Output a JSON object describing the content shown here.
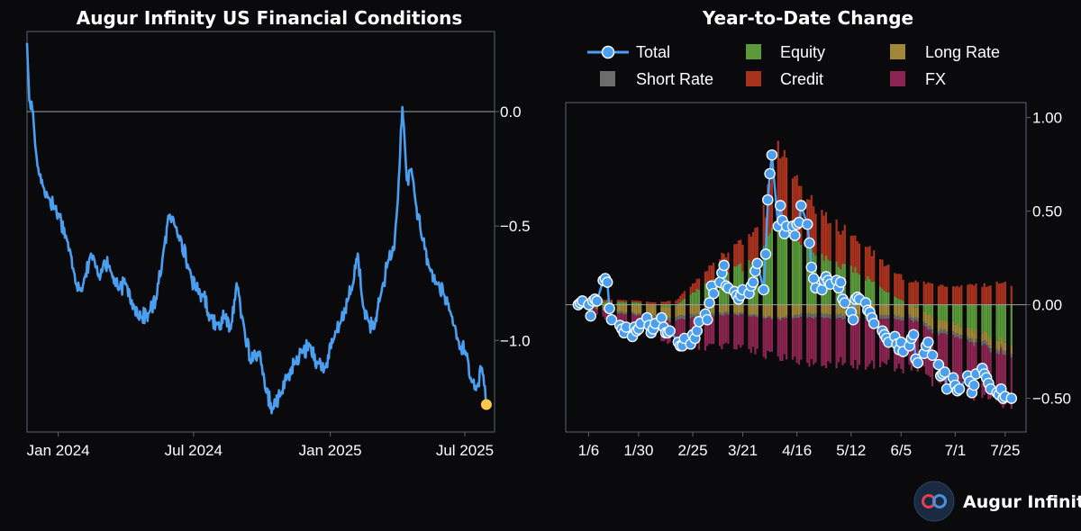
{
  "brand": {
    "name": "Augur Infinity"
  },
  "colors": {
    "background": "#0a0a0c",
    "frame": "#5a6470",
    "total": "#4a9ff0",
    "equity": "#5a9a3a",
    "credit": "#a8321e",
    "long_rate": "#a08838",
    "short_rate": "#6c6c6c",
    "fx": "#8a2450",
    "highlight": "#ffc84a"
  },
  "chart_data": [
    {
      "type": "line",
      "title": "Augur Infinity US Financial Conditions",
      "xlabel": "",
      "ylabel": "",
      "x_tick_labels": [
        "Jan 2024",
        "Jul 2024",
        "Jan 2025",
        "Jul 2025"
      ],
      "y_ticks": [
        0.0,
        -0.5,
        -1.0
      ],
      "y_tick_labels": [
        "0.0",
        "−0.5",
        "−1.0"
      ],
      "ylim": [
        -1.4,
        0.35
      ],
      "xlim": [
        "2023-11-20",
        "2025-08-10"
      ],
      "grid": false,
      "reference_line": 0.0,
      "anchors": [
        [
          "2023-11-20",
          0.3
        ],
        [
          "2023-11-23",
          0.05
        ],
        [
          "2023-11-28",
          0.0
        ],
        [
          "2023-12-01",
          -0.15
        ],
        [
          "2023-12-06",
          -0.27
        ],
        [
          "2023-12-12",
          -0.33
        ],
        [
          "2023-12-20",
          -0.38
        ],
        [
          "2024-01-02",
          -0.45
        ],
        [
          "2024-01-12",
          -0.55
        ],
        [
          "2024-01-22",
          -0.7
        ],
        [
          "2024-01-30",
          -0.78
        ],
        [
          "2024-02-06",
          -0.72
        ],
        [
          "2024-02-14",
          -0.62
        ],
        [
          "2024-02-24",
          -0.72
        ],
        [
          "2024-03-03",
          -0.65
        ],
        [
          "2024-03-12",
          -0.7
        ],
        [
          "2024-03-22",
          -0.78
        ],
        [
          "2024-04-01",
          -0.75
        ],
        [
          "2024-04-12",
          -0.85
        ],
        [
          "2024-04-22",
          -0.9
        ],
        [
          "2024-05-02",
          -0.88
        ],
        [
          "2024-05-12",
          -0.82
        ],
        [
          "2024-05-22",
          -0.6
        ],
        [
          "2024-05-30",
          -0.45
        ],
        [
          "2024-06-06",
          -0.5
        ],
        [
          "2024-06-14",
          -0.55
        ],
        [
          "2024-06-24",
          -0.68
        ],
        [
          "2024-07-04",
          -0.78
        ],
        [
          "2024-07-14",
          -0.8
        ],
        [
          "2024-07-24",
          -0.9
        ],
        [
          "2024-08-02",
          -0.93
        ],
        [
          "2024-08-12",
          -0.9
        ],
        [
          "2024-08-20",
          -0.95
        ],
        [
          "2024-08-28",
          -0.75
        ],
        [
          "2024-09-06",
          -0.92
        ],
        [
          "2024-09-16",
          -1.1
        ],
        [
          "2024-09-26",
          -1.05
        ],
        [
          "2024-10-06",
          -1.22
        ],
        [
          "2024-10-16",
          -1.3
        ],
        [
          "2024-10-26",
          -1.24
        ],
        [
          "2024-11-05",
          -1.15
        ],
        [
          "2024-11-15",
          -1.1
        ],
        [
          "2024-11-25",
          -1.05
        ],
        [
          "2024-12-05",
          -1.02
        ],
        [
          "2024-12-15",
          -1.1
        ],
        [
          "2024-12-25",
          -1.12
        ],
        [
          "2025-01-05",
          -1.0
        ],
        [
          "2025-01-15",
          -0.92
        ],
        [
          "2025-01-25",
          -0.82
        ],
        [
          "2025-02-01",
          -0.75
        ],
        [
          "2025-02-07",
          -0.62
        ],
        [
          "2025-02-14",
          -0.85
        ],
        [
          "2025-02-22",
          -0.92
        ],
        [
          "2025-03-01",
          -0.95
        ],
        [
          "2025-03-10",
          -0.8
        ],
        [
          "2025-03-20",
          -0.65
        ],
        [
          "2025-03-28",
          -0.6
        ],
        [
          "2025-04-04",
          -0.25
        ],
        [
          "2025-04-08",
          0.02
        ],
        [
          "2025-04-14",
          -0.3
        ],
        [
          "2025-04-20",
          -0.25
        ],
        [
          "2025-04-26",
          -0.4
        ],
        [
          "2025-05-04",
          -0.55
        ],
        [
          "2025-05-14",
          -0.68
        ],
        [
          "2025-05-24",
          -0.75
        ],
        [
          "2025-06-03",
          -0.8
        ],
        [
          "2025-06-12",
          -0.88
        ],
        [
          "2025-06-22",
          -1.0
        ],
        [
          "2025-07-02",
          -1.05
        ],
        [
          "2025-07-10",
          -1.18
        ],
        [
          "2025-07-18",
          -1.2
        ],
        [
          "2025-07-24",
          -1.12
        ],
        [
          "2025-07-30",
          -1.28
        ]
      ],
      "last_point": [
        "2025-07-30",
        -1.28
      ]
    },
    {
      "type": "bar",
      "title": "Year-to-Date Change",
      "xlabel": "",
      "ylabel": "",
      "x_tick_labels": [
        "1/6",
        "1/30",
        "2/25",
        "3/21",
        "4/16",
        "5/12",
        "6/5",
        "7/1",
        "7/25"
      ],
      "y_ticks": [
        1.0,
        0.5,
        0.0,
        -0.5
      ],
      "y_tick_labels": [
        "1.00",
        "0.50",
        "0.00",
        "−0.50"
      ],
      "ylim": [
        -0.68,
        1.08
      ],
      "xlim": [
        "2024-12-26",
        "2025-08-04"
      ],
      "grid": false,
      "legend_position": "top",
      "legend": [
        "Total",
        "Equity",
        "Long Rate",
        "Short Rate",
        "Credit",
        "FX"
      ],
      "series_order": [
        "equity",
        "credit",
        "long_rate",
        "short_rate",
        "fx"
      ],
      "anchors": {
        "dates": [
          "2025-01-02",
          "2025-01-15",
          "2025-02-01",
          "2025-02-15",
          "2025-03-01",
          "2025-03-15",
          "2025-03-25",
          "2025-04-01",
          "2025-04-07",
          "2025-04-12",
          "2025-04-20",
          "2025-04-30",
          "2025-05-15",
          "2025-06-01",
          "2025-06-20",
          "2025-07-05",
          "2025-07-20",
          "2025-07-28"
        ],
        "equity": [
          0.0,
          0.02,
          0.01,
          -0.02,
          0.1,
          0.18,
          0.22,
          0.3,
          0.48,
          0.38,
          0.3,
          0.24,
          0.18,
          0.05,
          -0.06,
          -0.12,
          -0.17,
          -0.2
        ],
        "credit": [
          0.01,
          0.01,
          0.01,
          0.02,
          0.06,
          0.12,
          0.16,
          0.22,
          0.38,
          0.34,
          0.27,
          0.22,
          0.17,
          0.13,
          0.11,
          0.1,
          0.11,
          0.11
        ],
        "long_rate": [
          0.0,
          -0.03,
          -0.05,
          -0.06,
          -0.05,
          -0.04,
          -0.05,
          -0.06,
          -0.07,
          -0.06,
          -0.05,
          -0.05,
          -0.06,
          -0.06,
          -0.06,
          -0.05,
          -0.05,
          -0.05
        ],
        "short_rate": [
          0.0,
          -0.01,
          -0.01,
          -0.02,
          -0.02,
          -0.01,
          -0.01,
          -0.01,
          -0.01,
          -0.01,
          -0.02,
          -0.02,
          -0.02,
          -0.02,
          -0.02,
          -0.02,
          -0.02,
          -0.02
        ],
        "fx": [
          0.0,
          -0.04,
          -0.08,
          -0.12,
          -0.16,
          -0.17,
          -0.18,
          -0.19,
          -0.2,
          -0.22,
          -0.24,
          -0.24,
          -0.24,
          -0.25,
          -0.25,
          -0.26,
          -0.27,
          -0.28
        ]
      },
      "total_points": [
        [
          "2025-01-01",
          0.0
        ],
        [
          "2025-01-02",
          0.01
        ],
        [
          "2025-01-03",
          0.02
        ],
        [
          "2025-01-06",
          0.0
        ],
        [
          "2025-01-07",
          -0.06
        ],
        [
          "2025-01-08",
          0.02
        ],
        [
          "2025-01-09",
          0.03
        ],
        [
          "2025-01-10",
          0.02
        ],
        [
          "2025-01-13",
          0.13
        ],
        [
          "2025-01-14",
          0.14
        ],
        [
          "2025-01-15",
          0.12
        ],
        [
          "2025-01-16",
          -0.02
        ],
        [
          "2025-01-17",
          -0.08
        ],
        [
          "2025-01-21",
          -0.11
        ],
        [
          "2025-01-22",
          -0.13
        ],
        [
          "2025-01-23",
          -0.15
        ],
        [
          "2025-01-24",
          -0.12
        ],
        [
          "2025-01-27",
          -0.17
        ],
        [
          "2025-01-28",
          -0.12
        ],
        [
          "2025-01-29",
          -0.14
        ],
        [
          "2025-01-30",
          -0.13
        ],
        [
          "2025-01-31",
          -0.1
        ],
        [
          "2025-02-03",
          -0.07
        ],
        [
          "2025-02-04",
          -0.11
        ],
        [
          "2025-02-05",
          -0.15
        ],
        [
          "2025-02-06",
          -0.13
        ],
        [
          "2025-02-07",
          -0.1
        ],
        [
          "2025-02-10",
          -0.07
        ],
        [
          "2025-02-11",
          -0.12
        ],
        [
          "2025-02-12",
          -0.15
        ],
        [
          "2025-02-13",
          -0.15
        ],
        [
          "2025-02-14",
          -0.14
        ],
        [
          "2025-02-18",
          -0.2
        ],
        [
          "2025-02-19",
          -0.22
        ],
        [
          "2025-02-20",
          -0.22
        ],
        [
          "2025-02-21",
          -0.18
        ],
        [
          "2025-02-24",
          -0.21
        ],
        [
          "2025-02-25",
          -0.16
        ],
        [
          "2025-02-26",
          -0.18
        ],
        [
          "2025-02-27",
          -0.14
        ],
        [
          "2025-02-28",
          -0.09
        ],
        [
          "2025-03-03",
          -0.05
        ],
        [
          "2025-03-04",
          -0.08
        ],
        [
          "2025-03-05",
          0.01
        ],
        [
          "2025-03-06",
          0.1
        ],
        [
          "2025-03-07",
          0.06
        ],
        [
          "2025-03-10",
          0.12
        ],
        [
          "2025-03-11",
          0.17
        ],
        [
          "2025-03-12",
          0.21
        ],
        [
          "2025-03-13",
          0.1
        ],
        [
          "2025-03-14",
          0.09
        ],
        [
          "2025-03-17",
          0.07
        ],
        [
          "2025-03-18",
          0.05
        ],
        [
          "2025-03-19",
          0.03
        ],
        [
          "2025-03-20",
          0.05
        ],
        [
          "2025-03-21",
          0.08
        ],
        [
          "2025-03-24",
          0.06
        ],
        [
          "2025-03-25",
          0.1
        ],
        [
          "2025-03-26",
          0.12
        ],
        [
          "2025-03-27",
          0.18
        ],
        [
          "2025-03-28",
          0.22
        ],
        [
          "2025-03-31",
          0.08
        ],
        [
          "2025-04-01",
          0.27
        ],
        [
          "2025-04-02",
          0.56
        ],
        [
          "2025-04-03",
          0.7
        ],
        [
          "2025-04-04",
          0.8
        ],
        [
          "2025-04-07",
          0.42
        ],
        [
          "2025-04-08",
          0.53
        ],
        [
          "2025-04-09",
          0.45
        ],
        [
          "2025-04-10",
          0.38
        ],
        [
          "2025-04-11",
          0.42
        ],
        [
          "2025-04-14",
          0.42
        ],
        [
          "2025-04-15",
          0.37
        ],
        [
          "2025-04-16",
          0.43
        ],
        [
          "2025-04-17",
          0.44
        ],
        [
          "2025-04-18",
          0.53
        ],
        [
          "2025-04-21",
          0.43
        ],
        [
          "2025-04-22",
          0.33
        ],
        [
          "2025-04-23",
          0.2
        ],
        [
          "2025-04-24",
          0.14
        ],
        [
          "2025-04-25",
          0.09
        ],
        [
          "2025-04-28",
          0.08
        ],
        [
          "2025-04-29",
          0.13
        ],
        [
          "2025-04-30",
          0.15
        ],
        [
          "2025-05-01",
          0.13
        ],
        [
          "2025-05-02",
          0.11
        ],
        [
          "2025-05-05",
          0.13
        ],
        [
          "2025-05-06",
          0.09
        ],
        [
          "2025-05-07",
          0.12
        ],
        [
          "2025-05-08",
          0.03
        ],
        [
          "2025-05-09",
          0.01
        ],
        [
          "2025-05-12",
          -0.04
        ],
        [
          "2025-05-13",
          -0.08
        ],
        [
          "2025-05-14",
          0.03
        ],
        [
          "2025-05-15",
          0.04
        ],
        [
          "2025-05-16",
          0.03
        ],
        [
          "2025-05-19",
          0.01
        ],
        [
          "2025-05-20",
          -0.03
        ],
        [
          "2025-05-21",
          -0.04
        ],
        [
          "2025-05-22",
          -0.07
        ],
        [
          "2025-05-23",
          -0.1
        ],
        [
          "2025-05-27",
          -0.14
        ],
        [
          "2025-05-28",
          -0.16
        ],
        [
          "2025-05-29",
          -0.18
        ],
        [
          "2025-05-30",
          -0.2
        ],
        [
          "2025-06-02",
          -0.17
        ],
        [
          "2025-06-03",
          -0.21
        ],
        [
          "2025-06-04",
          -0.24
        ],
        [
          "2025-06-05",
          -0.2
        ],
        [
          "2025-06-06",
          -0.25
        ],
        [
          "2025-06-09",
          -0.22
        ],
        [
          "2025-06-10",
          -0.18
        ],
        [
          "2025-06-11",
          -0.16
        ],
        [
          "2025-06-12",
          -0.29
        ],
        [
          "2025-06-13",
          -0.31
        ],
        [
          "2025-06-16",
          -0.26
        ],
        [
          "2025-06-17",
          -0.22
        ],
        [
          "2025-06-18",
          -0.2
        ],
        [
          "2025-06-20",
          -0.27
        ],
        [
          "2025-06-23",
          -0.32
        ],
        [
          "2025-06-24",
          -0.38
        ],
        [
          "2025-06-25",
          -0.37
        ],
        [
          "2025-06-26",
          -0.36
        ],
        [
          "2025-06-27",
          -0.45
        ],
        [
          "2025-06-30",
          -0.39
        ],
        [
          "2025-07-01",
          -0.43
        ],
        [
          "2025-07-02",
          -0.46
        ],
        [
          "2025-07-03",
          -0.45
        ],
        [
          "2025-07-07",
          -0.38
        ],
        [
          "2025-07-08",
          -0.41
        ],
        [
          "2025-07-09",
          -0.47
        ],
        [
          "2025-07-10",
          -0.43
        ],
        [
          "2025-07-11",
          -0.37
        ],
        [
          "2025-07-14",
          -0.34
        ],
        [
          "2025-07-15",
          -0.37
        ],
        [
          "2025-07-16",
          -0.39
        ],
        [
          "2025-07-17",
          -0.42
        ],
        [
          "2025-07-18",
          -0.45
        ],
        [
          "2025-07-21",
          -0.47
        ],
        [
          "2025-07-22",
          -0.48
        ],
        [
          "2025-07-23",
          -0.45
        ],
        [
          "2025-07-24",
          -0.5
        ],
        [
          "2025-07-25",
          -0.49
        ],
        [
          "2025-07-28",
          -0.5
        ]
      ]
    }
  ]
}
